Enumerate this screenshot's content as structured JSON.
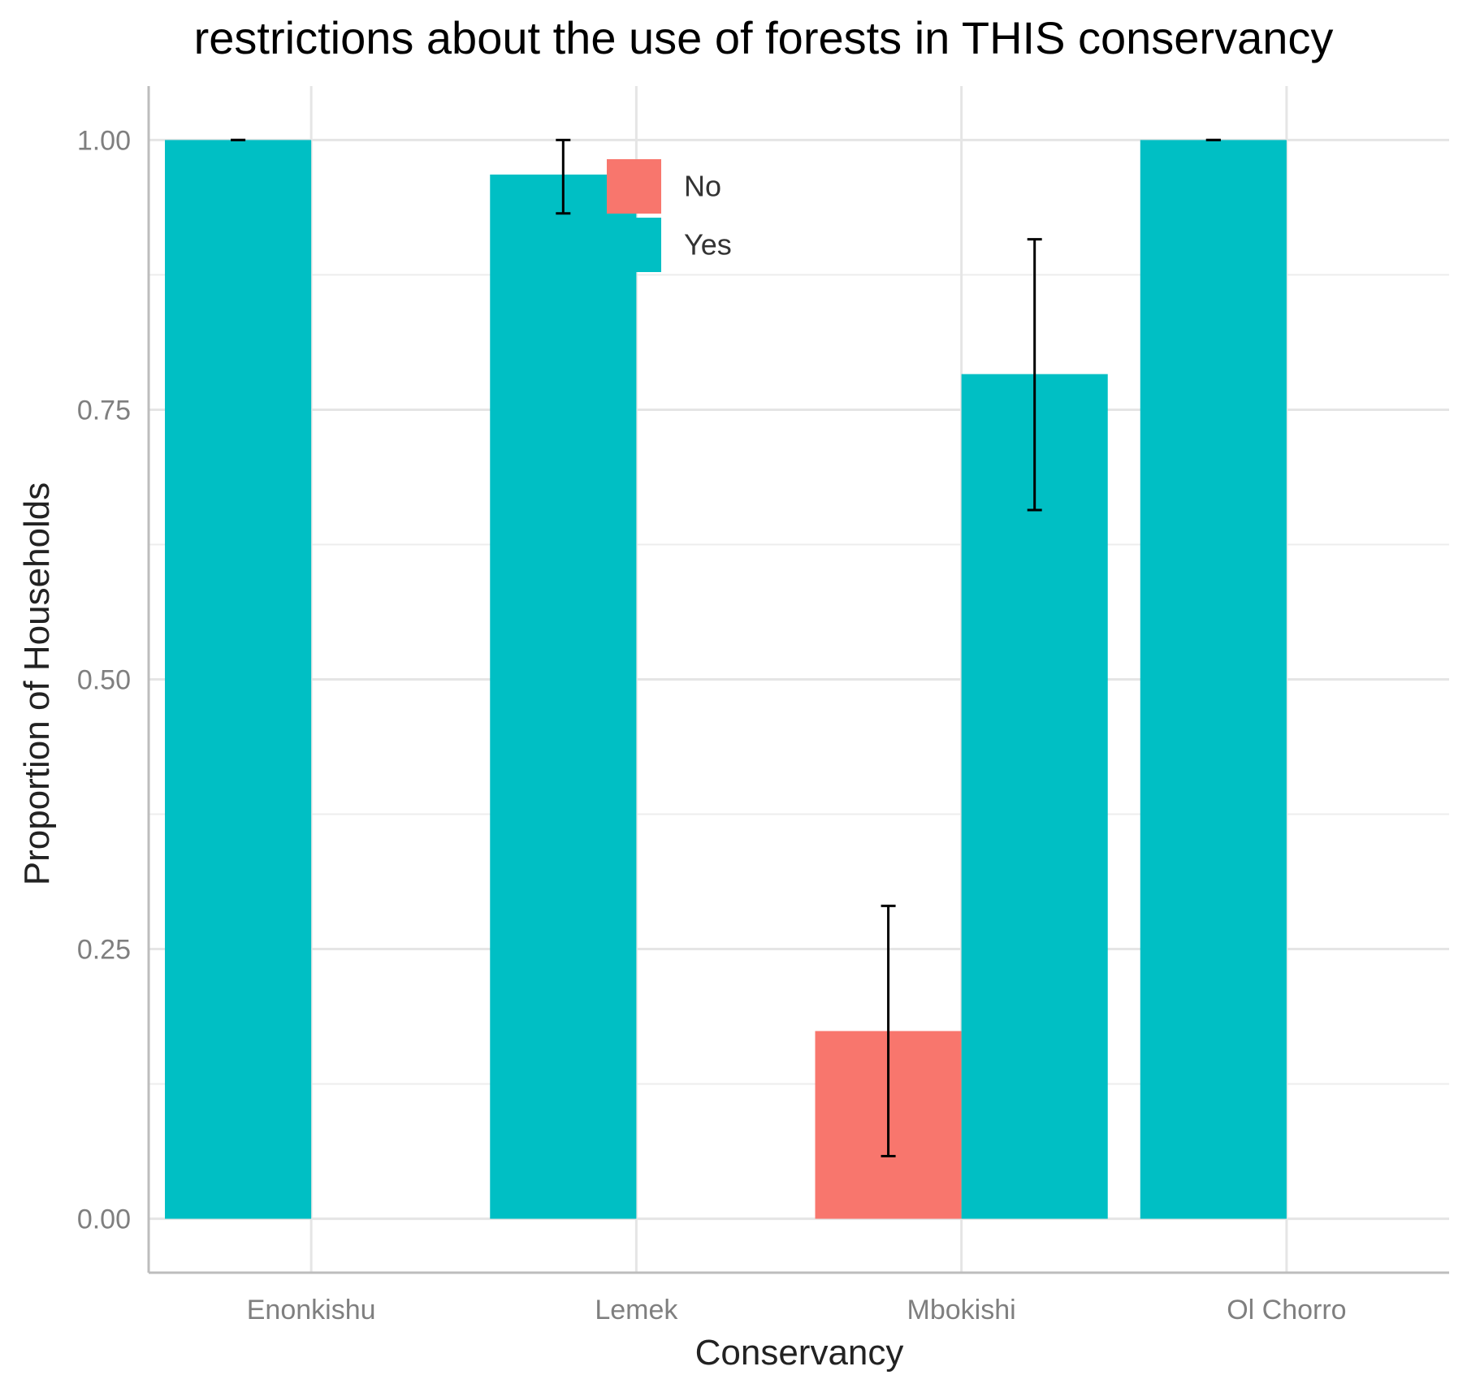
{
  "chart_data": {
    "type": "bar",
    "title": "restrictions about the use of forests in THIS conservancy",
    "xlabel": "Conservancy",
    "ylabel": "Proportion of Households",
    "categories": [
      "Enonkishu",
      "Lemek",
      "Mbokishi",
      "Ol Chorro"
    ],
    "ylim": [
      -0.05,
      1.05
    ],
    "yticks": [
      0.0,
      0.25,
      0.5,
      0.75,
      1.0
    ],
    "ytick_labels": [
      "0.00",
      "0.25",
      "0.50",
      "0.75",
      "1.00"
    ],
    "grid": true,
    "legend": {
      "placement": "top-center",
      "entries": [
        "No",
        "Yes"
      ]
    },
    "series": [
      {
        "name": "No",
        "color": "#F8766D",
        "values": [
          null,
          null,
          0.174,
          null
        ],
        "error_low": [
          null,
          null,
          0.058,
          null
        ],
        "error_high": [
          null,
          null,
          0.29,
          null
        ]
      },
      {
        "name": "Yes",
        "color": "#00BFC4",
        "values": [
          1.0,
          0.968,
          0.783,
          1.0
        ],
        "error_low": [
          1.0,
          0.932,
          0.657,
          1.0
        ],
        "error_high": [
          1.0,
          1.0,
          0.908,
          1.0
        ]
      }
    ],
    "bar_positions": [
      "left",
      "left",
      "left+right",
      "left"
    ]
  }
}
